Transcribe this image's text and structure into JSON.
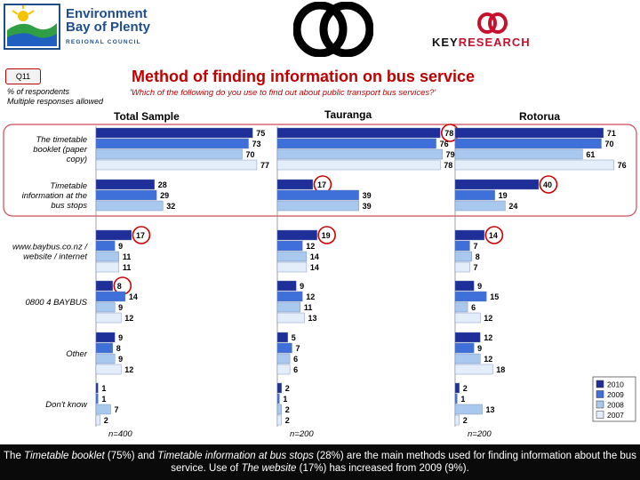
{
  "header": {
    "env_logo_lines": [
      "Environment",
      "Bay of Plenty"
    ],
    "env_logo_sub": "REGIONAL COUNCIL",
    "kr_logo_parts": [
      "KEY",
      "RESEARCH"
    ]
  },
  "question_code": "Q11",
  "title": "Method of finding information on bus service",
  "subtitle": "'Which of the following do you use to find out about public transport bus services?'",
  "notes": [
    "% of respondents",
    "Multiple responses allowed"
  ],
  "colors": {
    "2010": "#1f2f9a",
    "2009": "#3f6fd8",
    "2008": "#a9c8ee",
    "2007": "#e4eefa",
    "highlight": "#cc0000",
    "rounded_box": "#d04a5a"
  },
  "chart_data": {
    "type": "bar",
    "orientation": "horizontal",
    "categories": [
      "The timetable booklet (paper copy)",
      "Timetable information at the bus stops",
      "www.baybus.co.nz / website / internet",
      "0800 4 BAYBUS",
      "Other",
      "Don't know"
    ],
    "legend": [
      "2010",
      "2009",
      "2008",
      "2007"
    ],
    "legend_position": "right",
    "panels": [
      {
        "name": "Total Sample",
        "n_label": "n=400",
        "values": [
          [
            75,
            73,
            70,
            77
          ],
          [
            28,
            29,
            32
          ],
          [
            17,
            9,
            11,
            11
          ],
          [
            8,
            14,
            9,
            12
          ],
          [
            9,
            8,
            9,
            12
          ],
          [
            1,
            1,
            7,
            2
          ]
        ],
        "highlight": [
          0,
          2
        ],
        "highlight_circles": [
          [
            2,
            0
          ],
          [
            3,
            0
          ]
        ]
      },
      {
        "name": "Tauranga",
        "n_label": "n=200",
        "values": [
          [
            78,
            76,
            79,
            78
          ],
          [
            17,
            39,
            39
          ],
          [
            19,
            12,
            14,
            14
          ],
          [
            9,
            12,
            11,
            13
          ],
          [
            5,
            7,
            6,
            6
          ],
          [
            2,
            1,
            2,
            2
          ]
        ],
        "highlight": [
          0,
          2
        ],
        "highlight_circles": [
          [
            0,
            0
          ],
          [
            1,
            0
          ],
          [
            2,
            0
          ]
        ]
      },
      {
        "name": "Rotorua",
        "n_label": "n=200",
        "values": [
          [
            71,
            70,
            61,
            76
          ],
          [
            40,
            19,
            24
          ],
          [
            14,
            7,
            8,
            7
          ],
          [
            9,
            15,
            6,
            12
          ],
          [
            12,
            9,
            12,
            18
          ],
          [
            2,
            1,
            13,
            2
          ]
        ],
        "highlight": [
          0,
          2
        ],
        "highlight_circles": [
          [
            1,
            0
          ],
          [
            2,
            0
          ]
        ]
      }
    ]
  },
  "footer": {
    "segments": [
      {
        "text": "The ",
        "style": "normal"
      },
      {
        "text": "Timetable booklet",
        "style": "italic"
      },
      {
        "text": " (75%) and ",
        "style": "normal"
      },
      {
        "text": "Timetable information at bus stops",
        "style": "italic"
      },
      {
        "text": " (28%) are the main methods used for finding information about the bus service.  Use of ",
        "style": "normal"
      },
      {
        "text": "The website",
        "style": "italic"
      },
      {
        "text": " (17%) has increased from 2009 (9%).",
        "style": "normal"
      }
    ]
  }
}
